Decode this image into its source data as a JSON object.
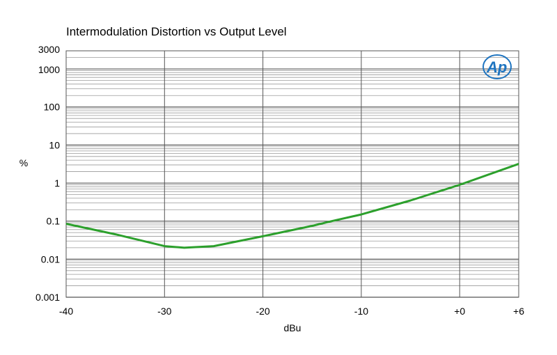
{
  "chart_data": {
    "type": "line",
    "title": "Intermodulation Distortion vs Output Level",
    "xlabel": "dBu",
    "ylabel": "%",
    "xlim": [
      -40,
      6
    ],
    "ylim": [
      0.001,
      3000
    ],
    "yscale": "log",
    "grid": true,
    "x_ticks": [
      {
        "value": -40,
        "label": "-40"
      },
      {
        "value": -30,
        "label": "-30"
      },
      {
        "value": -20,
        "label": "-20"
      },
      {
        "value": -10,
        "label": "-10"
      },
      {
        "value": 0,
        "label": "+0"
      },
      {
        "value": 6,
        "label": "+6"
      }
    ],
    "y_ticks": [
      {
        "value": 0.001,
        "label": "0.001"
      },
      {
        "value": 0.01,
        "label": "0.01"
      },
      {
        "value": 0.1,
        "label": "0.1"
      },
      {
        "value": 1,
        "label": "1"
      },
      {
        "value": 10,
        "label": "10"
      },
      {
        "value": 100,
        "label": "100"
      },
      {
        "value": 1000,
        "label": "1000"
      },
      {
        "value": 3000,
        "label": "3000"
      }
    ],
    "series": [
      {
        "color": "#2ca02c",
        "x": [
          -40,
          -35,
          -30,
          -28,
          -25,
          -20,
          -15,
          -13,
          -10,
          -5,
          0,
          6
        ],
        "y": [
          0.085,
          0.045,
          0.022,
          0.02,
          0.022,
          0.04,
          0.075,
          0.1,
          0.15,
          0.35,
          0.9,
          3.2
        ]
      }
    ]
  },
  "logo": {
    "text": "Ap",
    "color": "#1e74c0"
  }
}
